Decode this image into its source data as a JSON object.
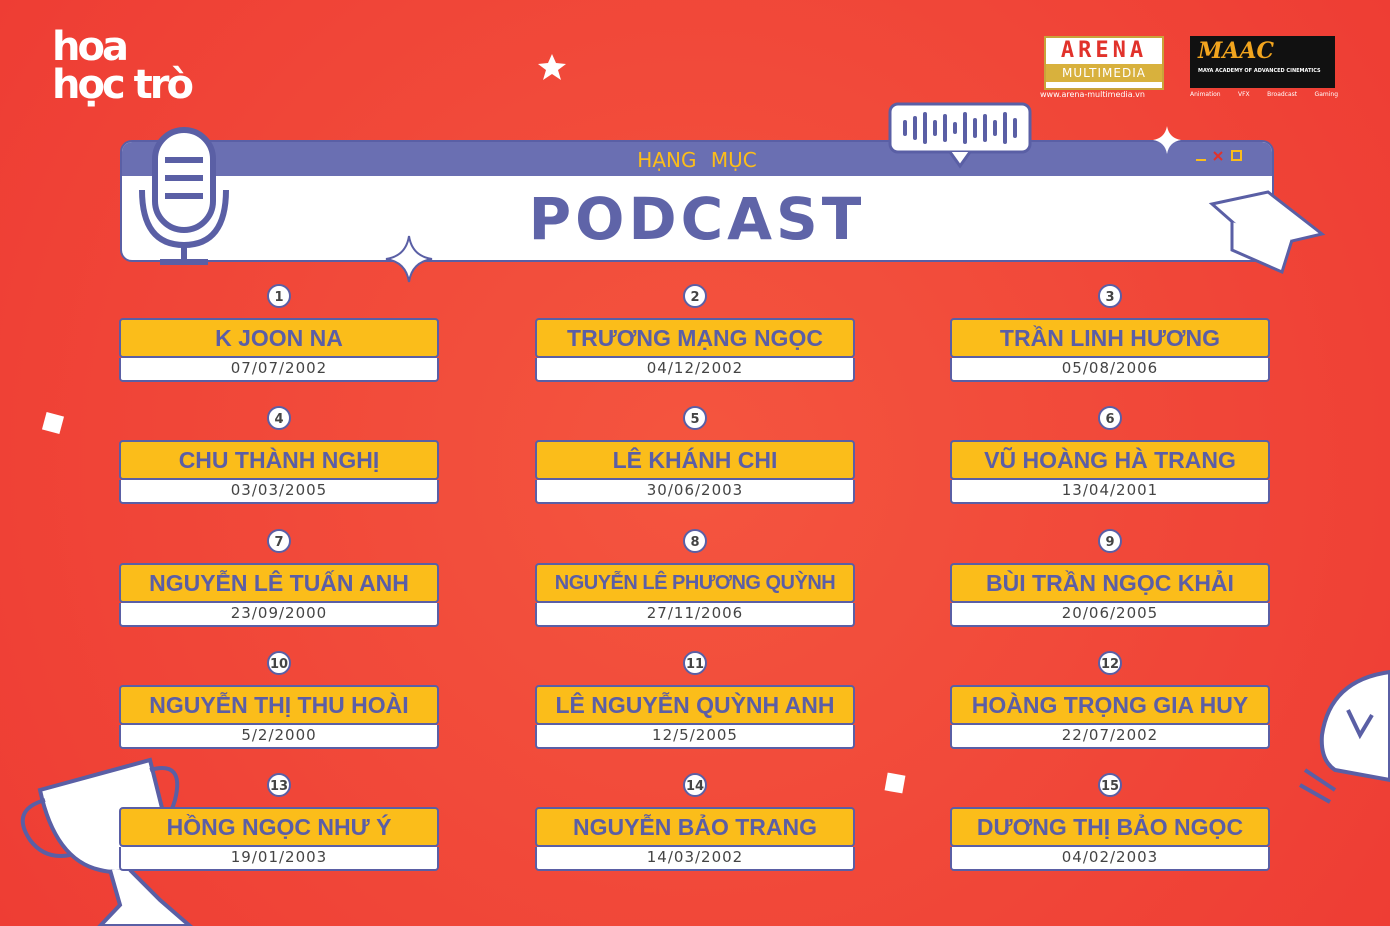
{
  "logo": {
    "title": "hoa học trò"
  },
  "sponsors": {
    "arena": {
      "name": "ARENA",
      "sub": "MULTIMEDIA",
      "url": "www.arena-multimedia.vn"
    },
    "maac": {
      "name": "MAAC",
      "sub": "MAYA ACADEMY OF ADVANCED CINEMATICS",
      "tags": [
        "Animation",
        "VFX",
        "Broadcast",
        "Gaming"
      ]
    }
  },
  "header": {
    "category": "HẠNG MỤC",
    "title": "PODCAST"
  },
  "nominees": [
    {
      "number": 1,
      "name": "K JOON NA",
      "date": "07/07/2002"
    },
    {
      "number": 2,
      "name": "TRƯƠNG MẠNG NGỌC",
      "date": "04/12/2002"
    },
    {
      "number": 3,
      "name": "TRẦN LINH HƯƠNG",
      "date": "05/08/2006"
    },
    {
      "number": 4,
      "name": "CHU THÀNH NGHỊ",
      "date": "03/03/2005"
    },
    {
      "number": 5,
      "name": "LÊ KHÁNH CHI",
      "date": "30/06/2003"
    },
    {
      "number": 6,
      "name": "VŨ HOÀNG HÀ TRANG",
      "date": "13/04/2001"
    },
    {
      "number": 7,
      "name": "NGUYỄN LÊ TUẤN ANH",
      "date": "23/09/2000"
    },
    {
      "number": 8,
      "name": "NGUYỄN LÊ PHƯƠNG QUỲNH",
      "date": "27/11/2006"
    },
    {
      "number": 9,
      "name": "BÙI TRẦN NGỌC KHẢI",
      "date": "20/06/2005"
    },
    {
      "number": 10,
      "name": "NGUYỄN THỊ THU HOÀI",
      "date": "5/2/2000"
    },
    {
      "number": 11,
      "name": "LÊ NGUYỄN QUỲNH ANH",
      "date": "12/5/2005"
    },
    {
      "number": 12,
      "name": "HOÀNG TRỌNG GIA HUY",
      "date": "22/07/2002"
    },
    {
      "number": 13,
      "name": "HỒNG NGỌC NHƯ Ý",
      "date": "19/01/2003"
    },
    {
      "number": 14,
      "name": "NGUYỄN BẢO TRANG",
      "date": "14/03/2002"
    },
    {
      "number": 15,
      "name": "DƯƠNG THỊ BẢO NGỌC",
      "date": "04/02/2003"
    }
  ]
}
